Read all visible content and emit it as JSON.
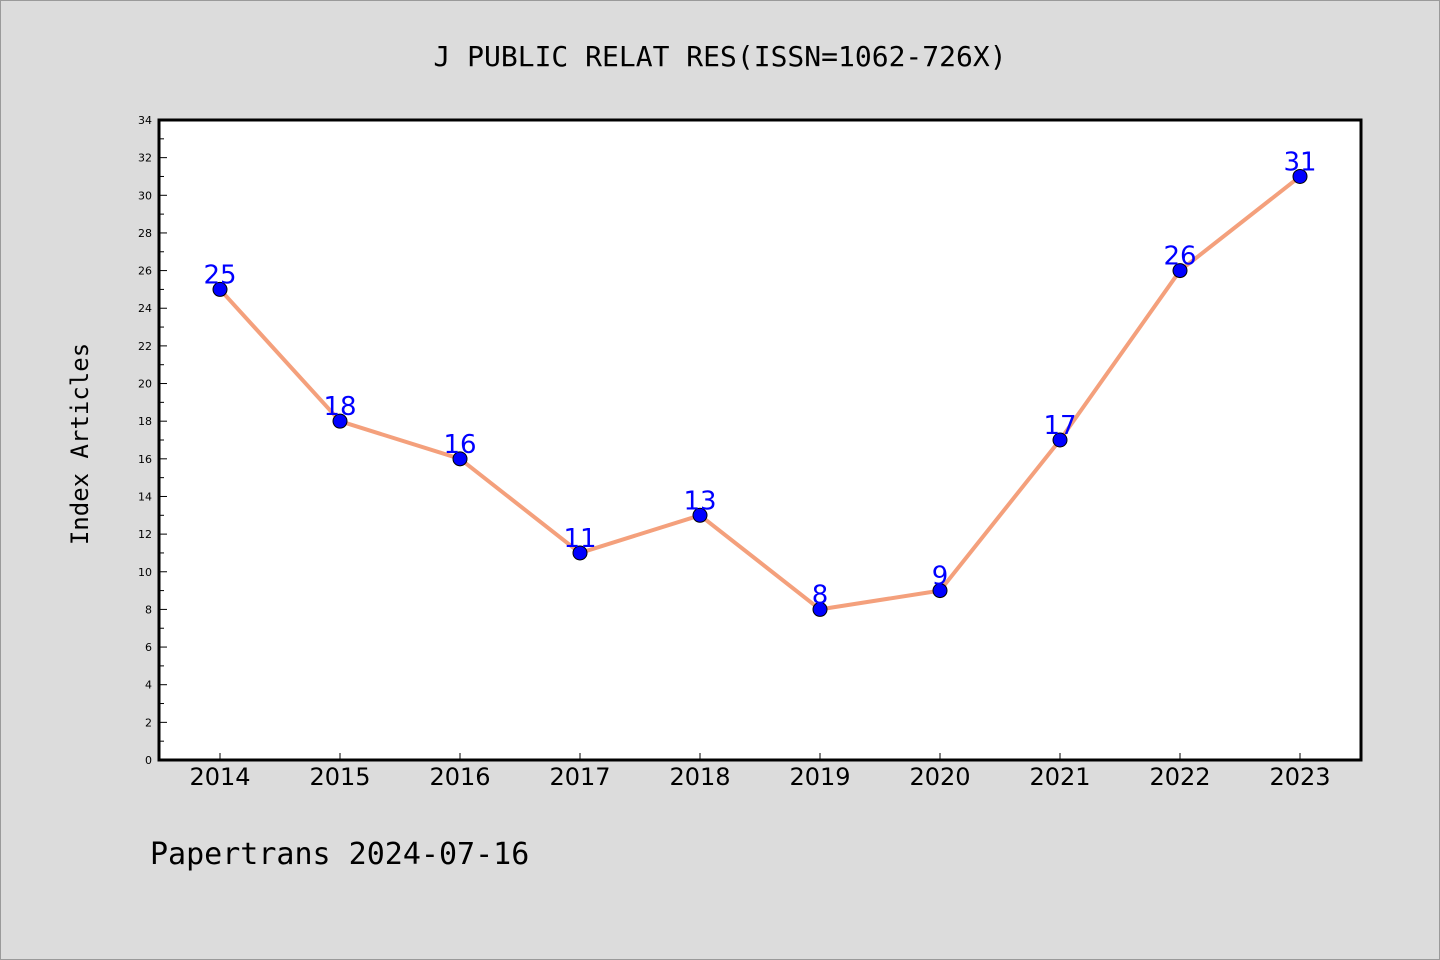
{
  "chart_data": {
    "type": "line",
    "title": "J PUBLIC RELAT RES(ISSN=1062-726X)",
    "ylabel": "Index Articles",
    "xlabel": "",
    "categories": [
      "2014",
      "2015",
      "2016",
      "2017",
      "2018",
      "2019",
      "2020",
      "2021",
      "2022",
      "2023"
    ],
    "series": [
      {
        "values": [
          25,
          18,
          16,
          11,
          13,
          8,
          9,
          17,
          26,
          31
        ]
      }
    ],
    "ylim": [
      0,
      34
    ],
    "yticks": [
      0,
      2,
      4,
      6,
      8,
      10,
      12,
      14,
      16,
      18,
      20,
      22,
      24,
      26,
      28,
      30,
      32,
      34
    ],
    "grid": false,
    "line_color": "#f4a07c",
    "marker_color": "#0000ff",
    "label_color": "#0000ff",
    "data_labels": true
  },
  "footer": "Papertrans 2024-07-16"
}
